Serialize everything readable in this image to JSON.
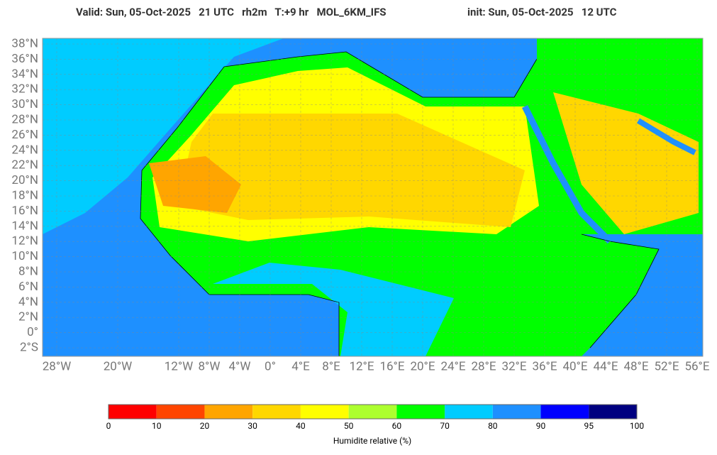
{
  "header": {
    "left": "Valid: Sun, 05-Oct-2025   21 UTC   rh2m   T:+9 hr   MOL_6KM_IFS",
    "right": "init: Sun, 05-Oct-2025   12 UTC"
  },
  "map": {
    "lat_ticks": [
      {
        "value": 38,
        "label": "38°N"
      },
      {
        "value": 36,
        "label": "36°N"
      },
      {
        "value": 34,
        "label": "34°N"
      },
      {
        "value": 32,
        "label": "32°N"
      },
      {
        "value": 30,
        "label": "30°N"
      },
      {
        "value": 28,
        "label": "28°N"
      },
      {
        "value": 26,
        "label": "26°N"
      },
      {
        "value": 24,
        "label": "24°N"
      },
      {
        "value": 22,
        "label": "22°N"
      },
      {
        "value": 20,
        "label": "20°N"
      },
      {
        "value": 18,
        "label": "18°N"
      },
      {
        "value": 16,
        "label": "16°N"
      },
      {
        "value": 14,
        "label": "14°N"
      },
      {
        "value": 12,
        "label": "12°N"
      },
      {
        "value": 10,
        "label": "10°N"
      },
      {
        "value": 8,
        "label": "8°N"
      },
      {
        "value": 6,
        "label": "6°N"
      },
      {
        "value": 4,
        "label": "4°N"
      },
      {
        "value": 2,
        "label": "2°N"
      },
      {
        "value": 0,
        "label": "0°"
      },
      {
        "value": -2,
        "label": "2°S"
      }
    ],
    "lon_ticks": [
      {
        "value": -28,
        "label": "28°W"
      },
      {
        "value": -20,
        "label": "20°W"
      },
      {
        "value": -12,
        "label": "12°W"
      },
      {
        "value": -8,
        "label": "8°W"
      },
      {
        "value": -4,
        "label": "4°W"
      },
      {
        "value": 0,
        "label": "0°"
      },
      {
        "value": 4,
        "label": "4°E"
      },
      {
        "value": 8,
        "label": "8°E"
      },
      {
        "value": 12,
        "label": "12°E"
      },
      {
        "value": 16,
        "label": "16°E"
      },
      {
        "value": 20,
        "label": "20°E"
      },
      {
        "value": 24,
        "label": "24°E"
      },
      {
        "value": 28,
        "label": "28°E"
      },
      {
        "value": 32,
        "label": "32°E"
      },
      {
        "value": 36,
        "label": "36°E"
      },
      {
        "value": 40,
        "label": "40°E"
      },
      {
        "value": 44,
        "label": "44°E"
      },
      {
        "value": 48,
        "label": "48°E"
      },
      {
        "value": 52,
        "label": "52°E"
      },
      {
        "value": 56,
        "label": "56°E"
      }
    ]
  },
  "colorbar": {
    "ticks": [
      0,
      10,
      20,
      30,
      40,
      50,
      60,
      70,
      80,
      90,
      95,
      100
    ],
    "colors": [
      "#ff0000",
      "#ff4500",
      "#ffa500",
      "#ffd700",
      "#ffff00",
      "#adff2f",
      "#00ff00",
      "#00ccff",
      "#1e90ff",
      "#0000ff",
      "#000080"
    ],
    "label": "Humidite relative (%)"
  }
}
